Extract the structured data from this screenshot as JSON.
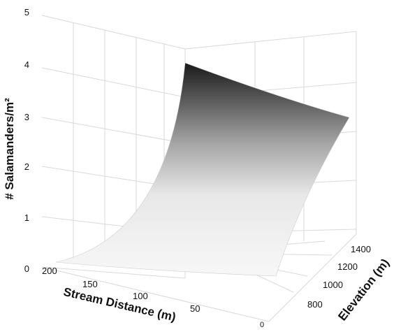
{
  "chart_data": {
    "type": "surface",
    "zlabel": "# Salamanders/m²",
    "xlabel": "Stream Distance (m)",
    "ylabel": "Elevation (m)",
    "z_ticks": [
      "0",
      "1",
      "2",
      "3",
      "4",
      "5"
    ],
    "x_ticks": [
      "200",
      "150",
      "100",
      "50",
      "0"
    ],
    "y_ticks": [
      "800",
      "1000",
      "1200",
      "1400"
    ],
    "zlim": [
      0,
      5
    ],
    "surface_corners": [
      {
        "stream_distance": 0,
        "elevation": 1500,
        "salamanders": 4.6
      },
      {
        "stream_distance": 0,
        "elevation": 600,
        "salamanders": 3.8
      },
      {
        "stream_distance": 200,
        "elevation": 1500,
        "salamanders": 0.1
      },
      {
        "stream_distance": 200,
        "elevation": 600,
        "salamanders": 0.02
      }
    ],
    "gradient": [
      "#f7f7f7",
      "#e6e6e6",
      "#9a9a9a",
      "#1a1a1a"
    ]
  }
}
